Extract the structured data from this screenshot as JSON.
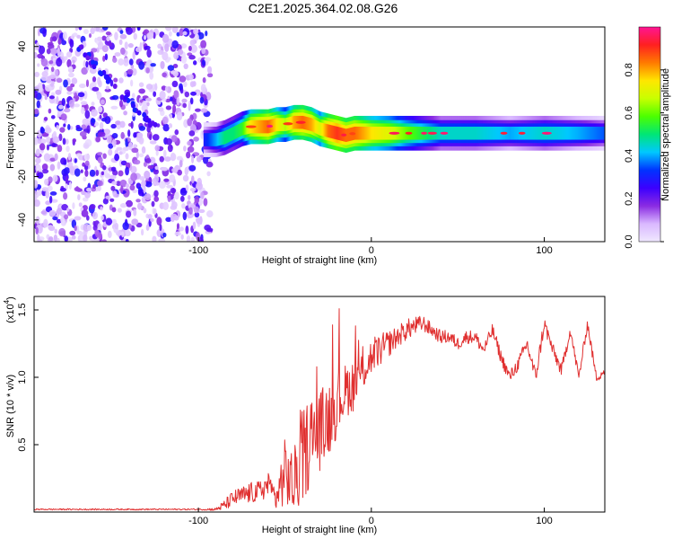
{
  "title": "C2E1.2025.364.02.08.G26",
  "chart_data": [
    {
      "type": "heatmap",
      "xlabel": "Height of straight line (km)",
      "ylabel": "Frequency (Hz)",
      "xlim": [
        -195,
        135
      ],
      "ylim": [
        -50,
        49
      ],
      "xticks": [
        -100,
        0,
        100
      ],
      "xtick_labels": [
        "-100",
        "0",
        "100"
      ],
      "yticks": [
        -40,
        -20,
        0,
        20,
        40
      ],
      "ytick_labels": [
        "-40",
        "-20",
        "0",
        "20",
        "40"
      ],
      "noise_region_x": [
        -195,
        -93
      ],
      "ridge": {
        "x": [
          -97,
          -90,
          -85,
          -80,
          -75,
          -70,
          -65,
          -60,
          -55,
          -50,
          -45,
          -40,
          -35,
          -30,
          -25,
          -20,
          -15,
          -10,
          -5,
          0,
          10,
          20,
          40,
          60,
          80,
          100,
          120,
          135
        ],
        "freq": [
          -3,
          -3,
          -2,
          0,
          2,
          3,
          3,
          3,
          4,
          4,
          5,
          5,
          4,
          2,
          1,
          0,
          -1,
          0,
          0,
          0,
          0,
          0,
          0,
          0,
          0,
          0,
          0,
          0
        ],
        "amplitude": [
          0.3,
          0.4,
          0.5,
          0.5,
          0.55,
          0.75,
          0.8,
          0.85,
          0.75,
          0.65,
          0.8,
          0.85,
          0.8,
          0.7,
          0.85,
          0.9,
          0.85,
          0.85,
          0.8,
          0.75,
          0.7,
          0.6,
          0.45,
          0.45,
          0.4,
          0.45,
          0.4,
          0.35
        ]
      },
      "colorbar": {
        "label": "Normalized spectral amplitude",
        "range": [
          0,
          1
        ],
        "ticks": [
          0.0,
          0.2,
          0.4,
          0.6,
          0.8
        ],
        "tick_labels": [
          "0.0",
          "0.2",
          "0.4",
          "0.6",
          "0.8"
        ],
        "colors": [
          "#f0e8ff",
          "#d9b8ff",
          "#8a2be2",
          "#3b00ff",
          "#0033ff",
          "#00c8ff",
          "#00e676",
          "#4cff00",
          "#c8ff00",
          "#ffe600",
          "#ff7a00",
          "#ff2020",
          "#ff1493"
        ]
      }
    },
    {
      "type": "line",
      "xlabel": "Height of straight line (km)",
      "ylabel": "SNR (10 * v/v)",
      "scale_label": "(x10",
      "scale_exp": "4",
      "scale_close": ")",
      "xlim": [
        -195,
        135
      ],
      "ylim": [
        0,
        1.6
      ],
      "xticks": [
        -100,
        0,
        100
      ],
      "xtick_labels": [
        "-100",
        "0",
        "100"
      ],
      "yticks": [
        0.5,
        1.0,
        1.5
      ],
      "ytick_labels": [
        "0.5",
        "1.0",
        "1.5"
      ],
      "color": "#e03030",
      "series": {
        "name": "SNR",
        "x": [
          -195,
          -150,
          -100,
          -90,
          -85,
          -80,
          -75,
          -70,
          -65,
          -60,
          -55,
          -50,
          -45,
          -40,
          -35,
          -30,
          -25,
          -20,
          -15,
          -10,
          -5,
          0,
          5,
          10,
          15,
          20,
          25,
          30,
          35,
          40,
          45,
          50,
          55,
          60,
          65,
          70,
          75,
          80,
          85,
          90,
          95,
          100,
          105,
          110,
          115,
          120,
          125,
          130,
          135
        ],
        "y": [
          0.02,
          0.02,
          0.02,
          0.02,
          0.05,
          0.1,
          0.12,
          0.14,
          0.15,
          0.2,
          0.1,
          0.3,
          0.2,
          0.4,
          0.55,
          0.6,
          0.7,
          0.8,
          0.9,
          0.95,
          1.05,
          1.15,
          1.2,
          1.25,
          1.3,
          1.35,
          1.38,
          1.4,
          1.35,
          1.3,
          1.3,
          1.25,
          1.3,
          1.3,
          1.2,
          1.35,
          1.15,
          1.0,
          1.1,
          1.25,
          1.0,
          1.4,
          1.2,
          1.05,
          1.35,
          1.0,
          1.4,
          1.0,
          1.05
        ],
        "noise_amplitude": [
          0.005,
          0.005,
          0.005,
          0.01,
          0.04,
          0.06,
          0.07,
          0.08,
          0.08,
          0.1,
          0.1,
          0.25,
          0.25,
          0.35,
          0.35,
          0.3,
          0.3,
          0.25,
          0.2,
          0.2,
          0.15,
          0.15,
          0.12,
          0.1,
          0.08,
          0.08,
          0.07,
          0.06,
          0.05,
          0.05,
          0.05,
          0.05,
          0.05,
          0.05,
          0.05,
          0.05,
          0.05,
          0.05,
          0.05,
          0.06,
          0.06,
          0.06,
          0.05,
          0.05,
          0.04,
          0.04,
          0.04,
          0.04,
          0.04
        ]
      }
    }
  ]
}
